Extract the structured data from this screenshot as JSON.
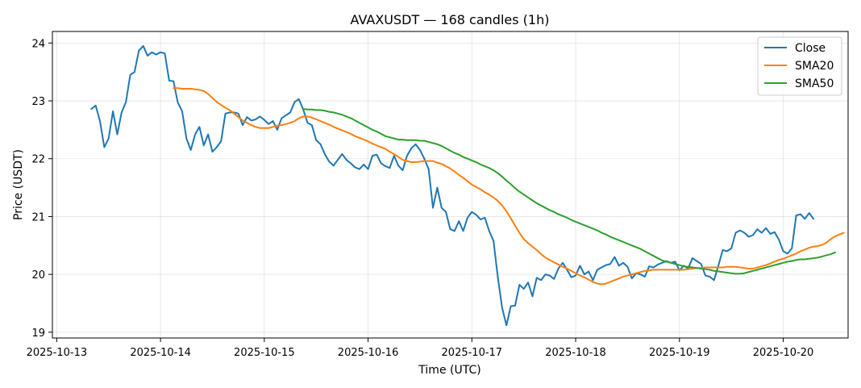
{
  "chart_data": {
    "type": "line",
    "title": "AVAXUSDT — 168 candles (1h)",
    "xlabel": "Time (UTC)",
    "ylabel": "Price (USDT)",
    "x_start": "2025-10-13 08:00",
    "x_step_hours": 1,
    "xlim": [
      "2025-10-12T23:00",
      "2025-10-20T15:00"
    ],
    "ylim": [
      18.9,
      24.2
    ],
    "x_ticks": [
      "2025-10-13",
      "2025-10-14",
      "2025-10-15",
      "2025-10-16",
      "2025-10-17",
      "2025-10-18",
      "2025-10-19",
      "2025-10-20"
    ],
    "y_ticks": [
      19,
      20,
      21,
      22,
      23,
      24
    ],
    "grid": true,
    "legend_position": "top-right",
    "series": [
      {
        "name": "Close",
        "color": "#1f77b4",
        "values": [
          22.86,
          22.92,
          22.65,
          22.2,
          22.35,
          22.82,
          22.42,
          22.8,
          22.98,
          23.45,
          23.5,
          23.87,
          23.95,
          23.78,
          23.84,
          23.8,
          23.84,
          23.82,
          23.35,
          23.34,
          22.97,
          22.82,
          22.35,
          22.15,
          22.42,
          22.55,
          22.23,
          22.42,
          22.12,
          22.2,
          22.3,
          22.78,
          22.8,
          22.8,
          22.78,
          22.58,
          22.72,
          22.66,
          22.68,
          22.73,
          22.67,
          22.6,
          22.65,
          22.5,
          22.7,
          22.75,
          22.8,
          22.98,
          23.03,
          22.85,
          22.62,
          22.58,
          22.32,
          22.25,
          22.08,
          21.95,
          21.88,
          21.98,
          22.08,
          21.98,
          21.92,
          21.85,
          21.82,
          21.9,
          21.82,
          22.05,
          22.07,
          21.92,
          21.87,
          21.84,
          22.05,
          21.88,
          21.8,
          22.05,
          22.18,
          22.25,
          22.15,
          22.0,
          21.82,
          21.15,
          21.5,
          21.15,
          21.08,
          20.78,
          20.75,
          20.92,
          20.75,
          20.98,
          21.08,
          21.03,
          20.95,
          20.98,
          20.75,
          20.58,
          19.95,
          19.42,
          19.12,
          19.45,
          19.46,
          19.82,
          19.75,
          19.86,
          19.62,
          19.94,
          19.9,
          20.0,
          19.98,
          19.92,
          20.1,
          20.2,
          20.08,
          19.95,
          19.98,
          20.15,
          20.0,
          20.05,
          19.9,
          20.08,
          20.12,
          20.16,
          20.18,
          20.3,
          20.15,
          20.2,
          20.13,
          19.93,
          20.02,
          20.0,
          19.96,
          20.14,
          20.12,
          20.17,
          20.2,
          20.23,
          20.2,
          20.22,
          20.07,
          20.15,
          20.1,
          20.28,
          20.23,
          20.18,
          19.98,
          19.96,
          19.9,
          20.15,
          20.42,
          20.4,
          20.45,
          20.72,
          20.76,
          20.72,
          20.65,
          20.68,
          20.78,
          20.72,
          20.8,
          20.7,
          20.73,
          20.6,
          20.4,
          20.36,
          20.45,
          21.02,
          21.04,
          20.96,
          21.06,
          20.96
        ]
      },
      {
        "name": "SMA20",
        "color": "#ff7f0e",
        "values": [
          null,
          null,
          null,
          null,
          null,
          null,
          null,
          null,
          null,
          null,
          null,
          null,
          null,
          null,
          null,
          null,
          null,
          null,
          null,
          23.22,
          23.22,
          23.21,
          23.21,
          23.21,
          23.2,
          23.19,
          23.17,
          23.12,
          23.05,
          22.98,
          22.93,
          22.88,
          22.84,
          22.78,
          22.72,
          22.66,
          22.62,
          22.58,
          22.55,
          22.53,
          22.53,
          22.53,
          22.55,
          22.57,
          22.58,
          22.6,
          22.62,
          22.65,
          22.7,
          22.73,
          22.73,
          22.71,
          22.68,
          22.65,
          22.62,
          22.59,
          22.55,
          22.52,
          22.49,
          22.46,
          22.43,
          22.39,
          22.36,
          22.33,
          22.3,
          22.26,
          22.23,
          22.2,
          22.17,
          22.12,
          22.08,
          22.03,
          21.98,
          21.96,
          21.94,
          21.94,
          21.95,
          21.96,
          21.96,
          21.96,
          21.93,
          21.91,
          21.87,
          21.83,
          21.78,
          21.72,
          21.67,
          21.61,
          21.55,
          21.51,
          21.47,
          21.42,
          21.38,
          21.33,
          21.27,
          21.19,
          21.09,
          20.97,
          20.84,
          20.72,
          20.61,
          20.54,
          20.48,
          20.42,
          20.35,
          20.29,
          20.25,
          20.21,
          20.17,
          20.13,
          20.1,
          20.06,
          20.02,
          19.98,
          19.95,
          19.91,
          19.87,
          19.84,
          19.83,
          19.84,
          19.87,
          19.9,
          19.93,
          19.96,
          19.98,
          20.0,
          20.02,
          20.04,
          20.06,
          20.07,
          20.08,
          20.08,
          20.08,
          20.08,
          20.08,
          20.08,
          20.08,
          20.08,
          20.09,
          20.1,
          20.11,
          20.11,
          20.12,
          20.12,
          20.12,
          20.12,
          20.12,
          20.13,
          20.13,
          20.13,
          20.12,
          20.11,
          20.1,
          20.1,
          20.12,
          20.14,
          20.16,
          20.19,
          20.22,
          20.25,
          20.27,
          20.3,
          20.33,
          20.36,
          20.4,
          20.43,
          20.46,
          20.48,
          20.49,
          20.51,
          20.55,
          20.61,
          20.66,
          20.69,
          20.72
        ]
      },
      {
        "name": "SMA50",
        "color": "#2ca02c",
        "values": [
          null,
          null,
          null,
          null,
          null,
          null,
          null,
          null,
          null,
          null,
          null,
          null,
          null,
          null,
          null,
          null,
          null,
          null,
          null,
          null,
          null,
          null,
          null,
          null,
          null,
          null,
          null,
          null,
          null,
          null,
          null,
          null,
          null,
          null,
          null,
          null,
          null,
          null,
          null,
          null,
          null,
          null,
          null,
          null,
          null,
          null,
          null,
          null,
          null,
          22.86,
          22.85,
          22.85,
          22.84,
          22.84,
          22.83,
          22.81,
          22.8,
          22.78,
          22.76,
          22.73,
          22.7,
          22.66,
          22.62,
          22.58,
          22.54,
          22.5,
          22.47,
          22.43,
          22.39,
          22.37,
          22.35,
          22.33,
          22.33,
          22.32,
          22.32,
          22.32,
          22.31,
          22.31,
          22.29,
          22.27,
          22.25,
          22.22,
          22.18,
          22.14,
          22.1,
          22.07,
          22.03,
          22.0,
          21.97,
          21.94,
          21.9,
          21.87,
          21.84,
          21.8,
          21.75,
          21.69,
          21.62,
          21.56,
          21.49,
          21.43,
          21.38,
          21.33,
          21.28,
          21.23,
          21.19,
          21.15,
          21.11,
          21.08,
          21.04,
          21.01,
          20.98,
          20.94,
          20.91,
          20.88,
          20.85,
          20.82,
          20.79,
          20.76,
          20.72,
          20.69,
          20.65,
          20.62,
          20.59,
          20.56,
          20.53,
          20.5,
          20.47,
          20.44,
          20.4,
          20.36,
          20.32,
          20.28,
          20.24,
          20.22,
          20.2,
          20.18,
          20.16,
          20.14,
          20.13,
          20.12,
          20.11,
          20.1,
          20.09,
          20.08,
          20.06,
          20.05,
          20.04,
          20.03,
          20.02,
          20.01,
          20.01,
          20.02,
          20.04,
          20.06,
          20.08,
          20.1,
          20.12,
          20.14,
          20.16,
          20.18,
          20.2,
          20.22,
          20.23,
          20.25,
          20.26,
          20.26,
          20.27,
          20.28,
          20.29,
          20.31,
          20.33,
          20.35,
          20.38
        ]
      }
    ]
  }
}
